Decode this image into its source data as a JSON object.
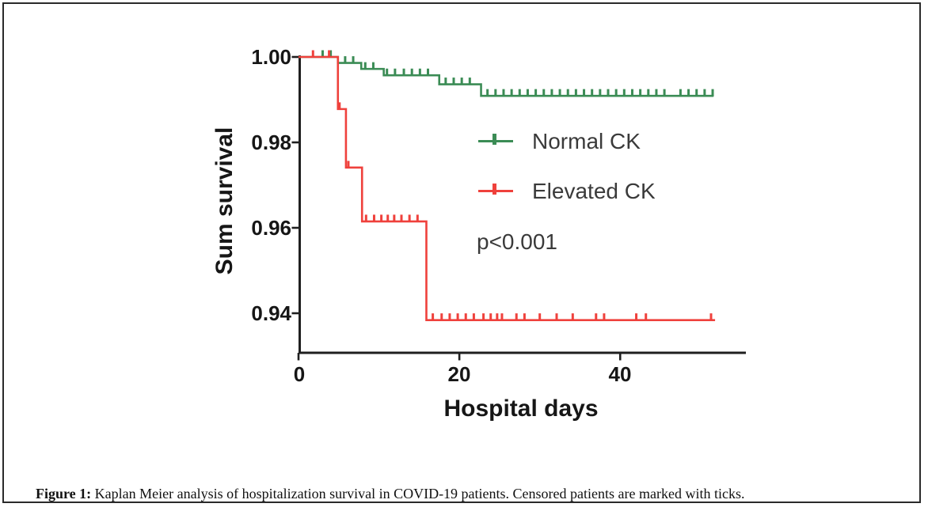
{
  "figure": {
    "caption_label": "Figure 1:",
    "caption_text": " Kaplan Meier analysis of hospitalization survival in COVID-19 patients. Censored patients are marked with ticks."
  },
  "chart_data": {
    "type": "line",
    "subtype": "kaplan_meier_step_survival",
    "title": "",
    "xlabel": "Hospital days",
    "ylabel": "Sum survival",
    "xlim": [
      0,
      55.6
    ],
    "ylim": [
      0.9308,
      1.0
    ],
    "grid": false,
    "legend_position": "center-right-inside",
    "annotation": "p<0.001",
    "axis_color": "#1f1f1f",
    "x_ticks": [
      {
        "value": 0,
        "label": "0"
      },
      {
        "value": 20,
        "label": "20"
      },
      {
        "value": 40,
        "label": "40"
      }
    ],
    "y_ticks": [
      {
        "value": 1.0,
        "label": "1.00"
      },
      {
        "value": 0.98,
        "label": "0.98"
      },
      {
        "value": 0.96,
        "label": "0.96"
      },
      {
        "value": 0.94,
        "label": "0.94"
      }
    ],
    "series": [
      {
        "name": "Normal CK",
        "color": "#3b8c55",
        "steps": [
          [
            0,
            1.0
          ],
          [
            4.9,
            0.9986
          ],
          [
            7.8,
            0.9972
          ],
          [
            10.6,
            0.9957
          ],
          [
            17.5,
            0.9936
          ],
          [
            22.7,
            0.9909
          ]
        ],
        "end_day": 51.6,
        "censored": [
          [
            3.0,
            1.0
          ],
          [
            4.0,
            1.0
          ],
          [
            5.8,
            0.9986
          ],
          [
            6.8,
            0.9986
          ],
          [
            8.3,
            0.9972
          ],
          [
            9.3,
            0.9972
          ],
          [
            11.0,
            0.9957
          ],
          [
            12.0,
            0.9957
          ],
          [
            13.1,
            0.9957
          ],
          [
            14.1,
            0.9957
          ],
          [
            15.1,
            0.9957
          ],
          [
            16.1,
            0.9957
          ],
          [
            18.3,
            0.9936
          ],
          [
            19.3,
            0.9936
          ],
          [
            20.3,
            0.9936
          ],
          [
            21.3,
            0.9936
          ],
          [
            23.5,
            0.9909
          ],
          [
            24.5,
            0.9909
          ],
          [
            25.5,
            0.9909
          ],
          [
            26.5,
            0.9909
          ],
          [
            27.5,
            0.9909
          ],
          [
            28.5,
            0.9909
          ],
          [
            29.5,
            0.9909
          ],
          [
            30.5,
            0.9909
          ],
          [
            31.5,
            0.9909
          ],
          [
            32.5,
            0.9909
          ],
          [
            33.5,
            0.9909
          ],
          [
            34.5,
            0.9909
          ],
          [
            35.5,
            0.9909
          ],
          [
            36.5,
            0.9909
          ],
          [
            37.5,
            0.9909
          ],
          [
            38.5,
            0.9909
          ],
          [
            39.5,
            0.9909
          ],
          [
            40.5,
            0.9909
          ],
          [
            41.5,
            0.9909
          ],
          [
            42.5,
            0.9909
          ],
          [
            43.5,
            0.9909
          ],
          [
            44.5,
            0.9909
          ],
          [
            45.5,
            0.9909
          ],
          [
            47.5,
            0.9909
          ],
          [
            48.5,
            0.9909
          ],
          [
            49.5,
            0.9909
          ],
          [
            50.5,
            0.9909
          ],
          [
            51.5,
            0.9909
          ]
        ]
      },
      {
        "name": "Elevated CK",
        "color": "#ef413c",
        "steps": [
          [
            0,
            1.0
          ],
          [
            4.9,
            0.9878
          ],
          [
            5.9,
            0.9741
          ],
          [
            7.9,
            0.9615
          ],
          [
            15.9,
            0.9384
          ]
        ],
        "end_day": 51.8,
        "censored": [
          [
            1.8,
            1.0
          ],
          [
            3.8,
            1.0
          ],
          [
            5.1,
            0.9878
          ],
          [
            6.2,
            0.9741
          ],
          [
            8.4,
            0.9615
          ],
          [
            9.4,
            0.9615
          ],
          [
            10.3,
            0.9615
          ],
          [
            11.1,
            0.9615
          ],
          [
            11.9,
            0.9615
          ],
          [
            12.8,
            0.9615
          ],
          [
            13.8,
            0.9615
          ],
          [
            14.8,
            0.9615
          ],
          [
            16.7,
            0.9384
          ],
          [
            17.8,
            0.9384
          ],
          [
            18.8,
            0.9384
          ],
          [
            19.8,
            0.9384
          ],
          [
            20.8,
            0.9384
          ],
          [
            21.8,
            0.9384
          ],
          [
            23.0,
            0.9384
          ],
          [
            23.9,
            0.9384
          ],
          [
            24.7,
            0.9384
          ],
          [
            25.3,
            0.9384
          ],
          [
            27.1,
            0.9384
          ],
          [
            28.1,
            0.9384
          ],
          [
            30.0,
            0.9384
          ],
          [
            32.1,
            0.9384
          ],
          [
            34.1,
            0.9384
          ],
          [
            37.0,
            0.9384
          ],
          [
            38.0,
            0.9384
          ],
          [
            42.0,
            0.9384
          ],
          [
            43.2,
            0.9384
          ],
          [
            51.3,
            0.9384
          ]
        ]
      }
    ]
  }
}
